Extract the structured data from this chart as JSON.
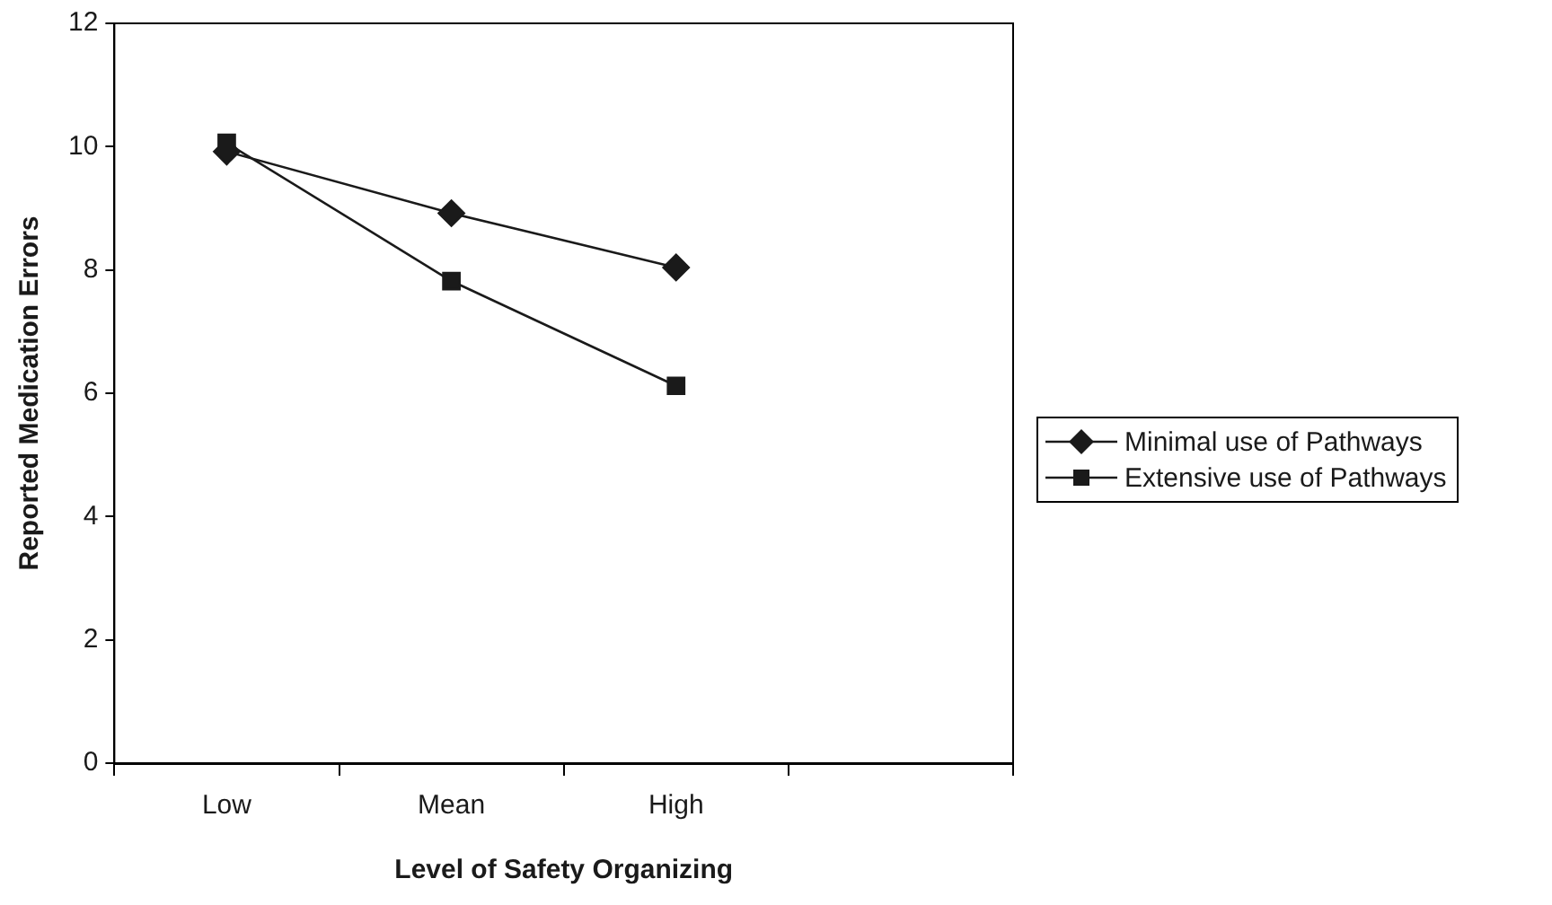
{
  "chart_data": {
    "type": "line",
    "xlabel": "Level of Safety Organizing",
    "ylabel": "Reported Medication Errors",
    "categories": [
      "Low",
      "Mean",
      "High",
      null
    ],
    "series": [
      {
        "name": "Minimal use of Pathways",
        "color": "#1a1a1a",
        "marker": "diamond",
        "values": [
          9.92,
          8.92,
          8.04,
          null
        ]
      },
      {
        "name": "Extensive use of Pathways",
        "color": "#1a1a1a",
        "marker": "square",
        "values": [
          10.06,
          7.82,
          6.12,
          null
        ]
      }
    ],
    "ylim": [
      0,
      12
    ],
    "yticks": [
      0,
      2,
      4,
      6,
      8,
      10,
      12
    ],
    "grid": false,
    "legend": "right",
    "line_style": "solid"
  }
}
